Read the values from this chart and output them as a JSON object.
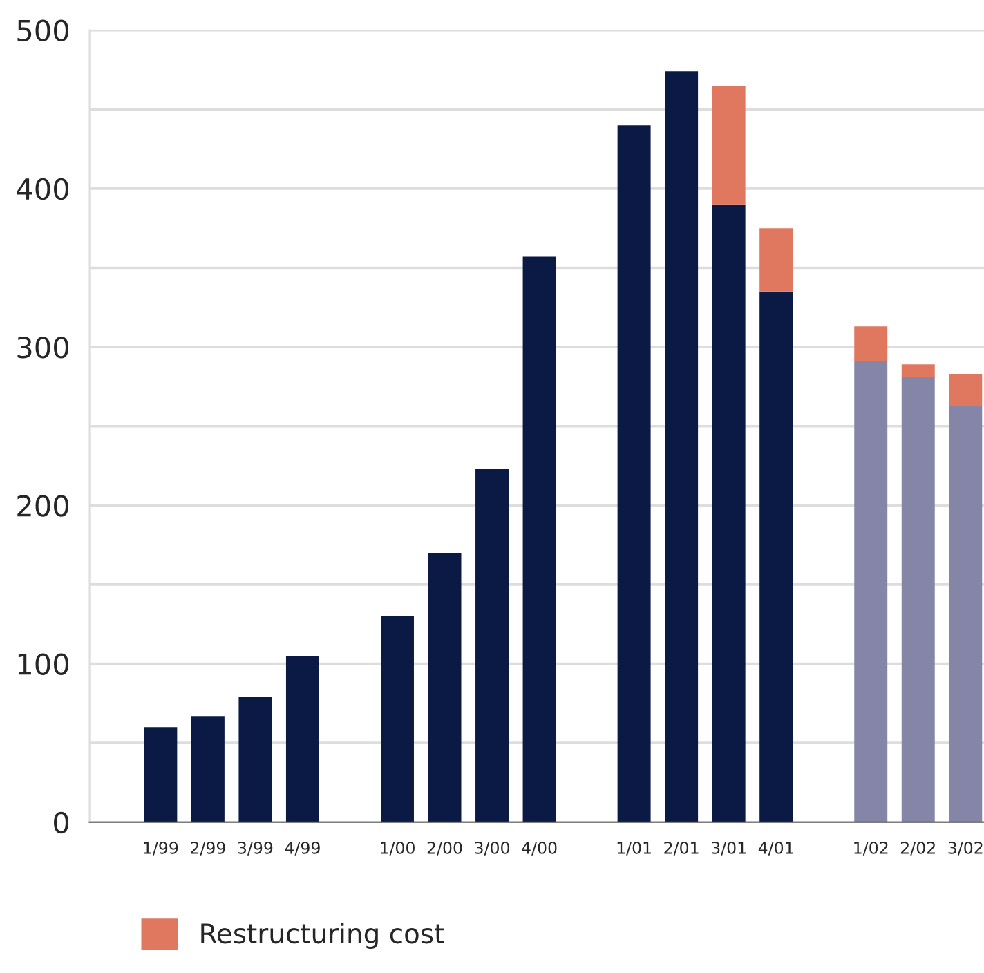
{
  "chart_data": {
    "type": "bar",
    "stacked": true,
    "categories": [
      "1/99",
      "2/99",
      "3/99",
      "4/99",
      null,
      "1/00",
      "2/00",
      "3/00",
      "4/00",
      null,
      "1/01",
      "2/01",
      "3/01",
      "4/01",
      null,
      "1/02",
      "2/02",
      "3/02"
    ],
    "series": [
      {
        "colors": [
          "#0a1a45",
          "#0a1a45",
          "#0a1a45",
          "#0a1a45",
          null,
          "#0a1a45",
          "#0a1a45",
          "#0a1a45",
          "#0a1a45",
          null,
          "#0a1a45",
          "#0a1a45",
          "#0a1a45",
          "#0a1a45",
          null,
          "#8585a8",
          "#8585a8",
          "#8585a8"
        ],
        "values": [
          60,
          67,
          79,
          105,
          null,
          130,
          170,
          223,
          357,
          null,
          440,
          474,
          390,
          335,
          null,
          291,
          281,
          263
        ]
      },
      {
        "name": "Restructuring cost",
        "color": "#e07860",
        "values": [
          null,
          null,
          null,
          null,
          null,
          null,
          null,
          null,
          null,
          null,
          null,
          null,
          75,
          40,
          null,
          22,
          8,
          20
        ]
      }
    ],
    "ylim": [
      0,
      500
    ],
    "yticks": [
      0,
      {
        "value": 50,
        "label": null
      },
      100,
      {
        "value": 150,
        "label": null
      },
      200,
      {
        "value": 250,
        "label": null
      },
      300,
      {
        "value": 350,
        "label": null
      },
      400,
      {
        "value": 450,
        "label": null
      },
      500
    ],
    "grid": "y",
    "legend": "bottom left"
  }
}
